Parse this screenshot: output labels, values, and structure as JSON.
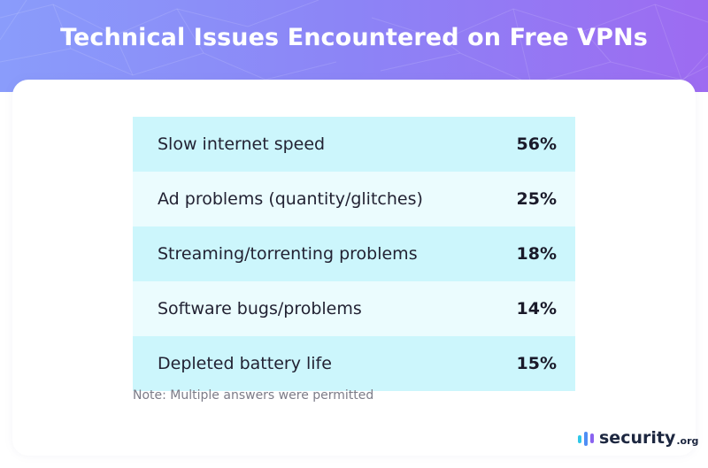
{
  "chart_data": {
    "type": "table",
    "title": "Technical Issues Encountered on Free VPNs",
    "rows": [
      {
        "label": "Slow internet speed",
        "value": "56%"
      },
      {
        "label": "Ad problems (quantity/glitches)",
        "value": "25%"
      },
      {
        "label": "Streaming/torrenting problems",
        "value": "18%"
      },
      {
        "label": "Software bugs/problems",
        "value": "14%"
      },
      {
        "label": "Depleted battery life",
        "value": "15%"
      }
    ],
    "note": "Note: Multiple answers were permitted"
  },
  "brand": {
    "name": "security",
    "tld": ".org"
  },
  "colors": {
    "header_gradient": [
      "#8a9cfb",
      "#9d6bf1"
    ],
    "row_odd": "#ccf6fc",
    "row_even": "#ebfcfe",
    "logo_bars": [
      "#2fc7e8",
      "#4f8ef5",
      "#8a63f0"
    ]
  }
}
